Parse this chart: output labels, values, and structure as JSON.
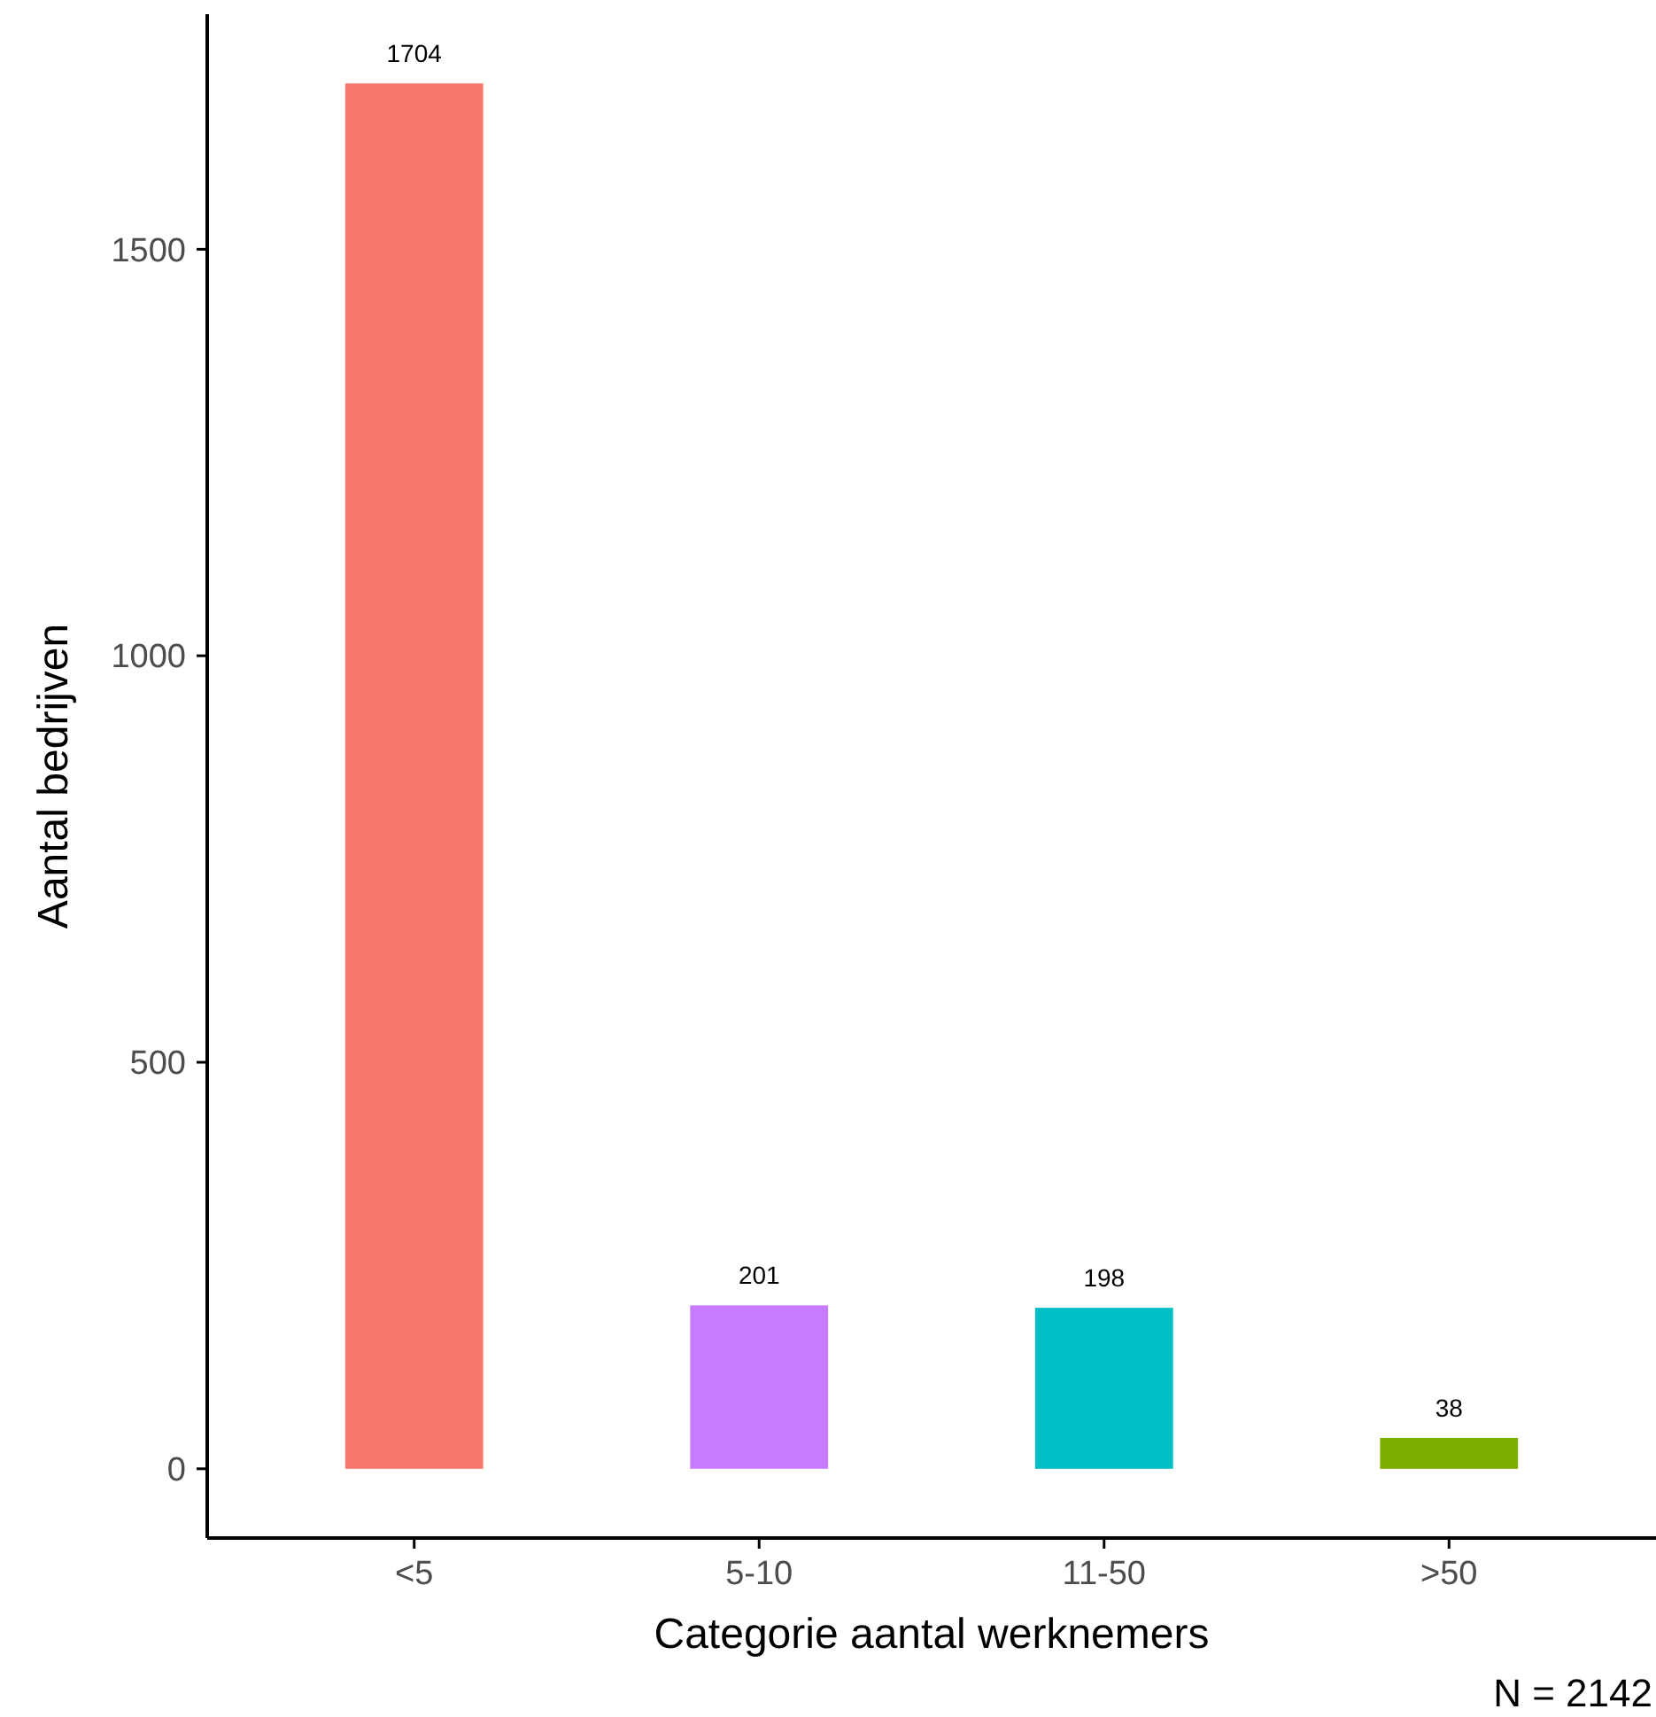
{
  "chart_data": {
    "type": "bar",
    "xlabel": "Categorie aantal werknemers",
    "ylabel": "Aantal bedrijven",
    "categories": [
      "<5",
      "5-10",
      "11-50",
      ">50"
    ],
    "values": [
      1704,
      201,
      198,
      38
    ],
    "colors": [
      "#f8766d",
      "#c77cff",
      "#00bfc4",
      "#7cae00"
    ],
    "ylim": [
      -85.2,
      1789.2
    ],
    "yticks": [
      0,
      500,
      1000,
      1500
    ],
    "data_labels": true,
    "grid": false,
    "annotations": [
      "N = 2142"
    ]
  }
}
